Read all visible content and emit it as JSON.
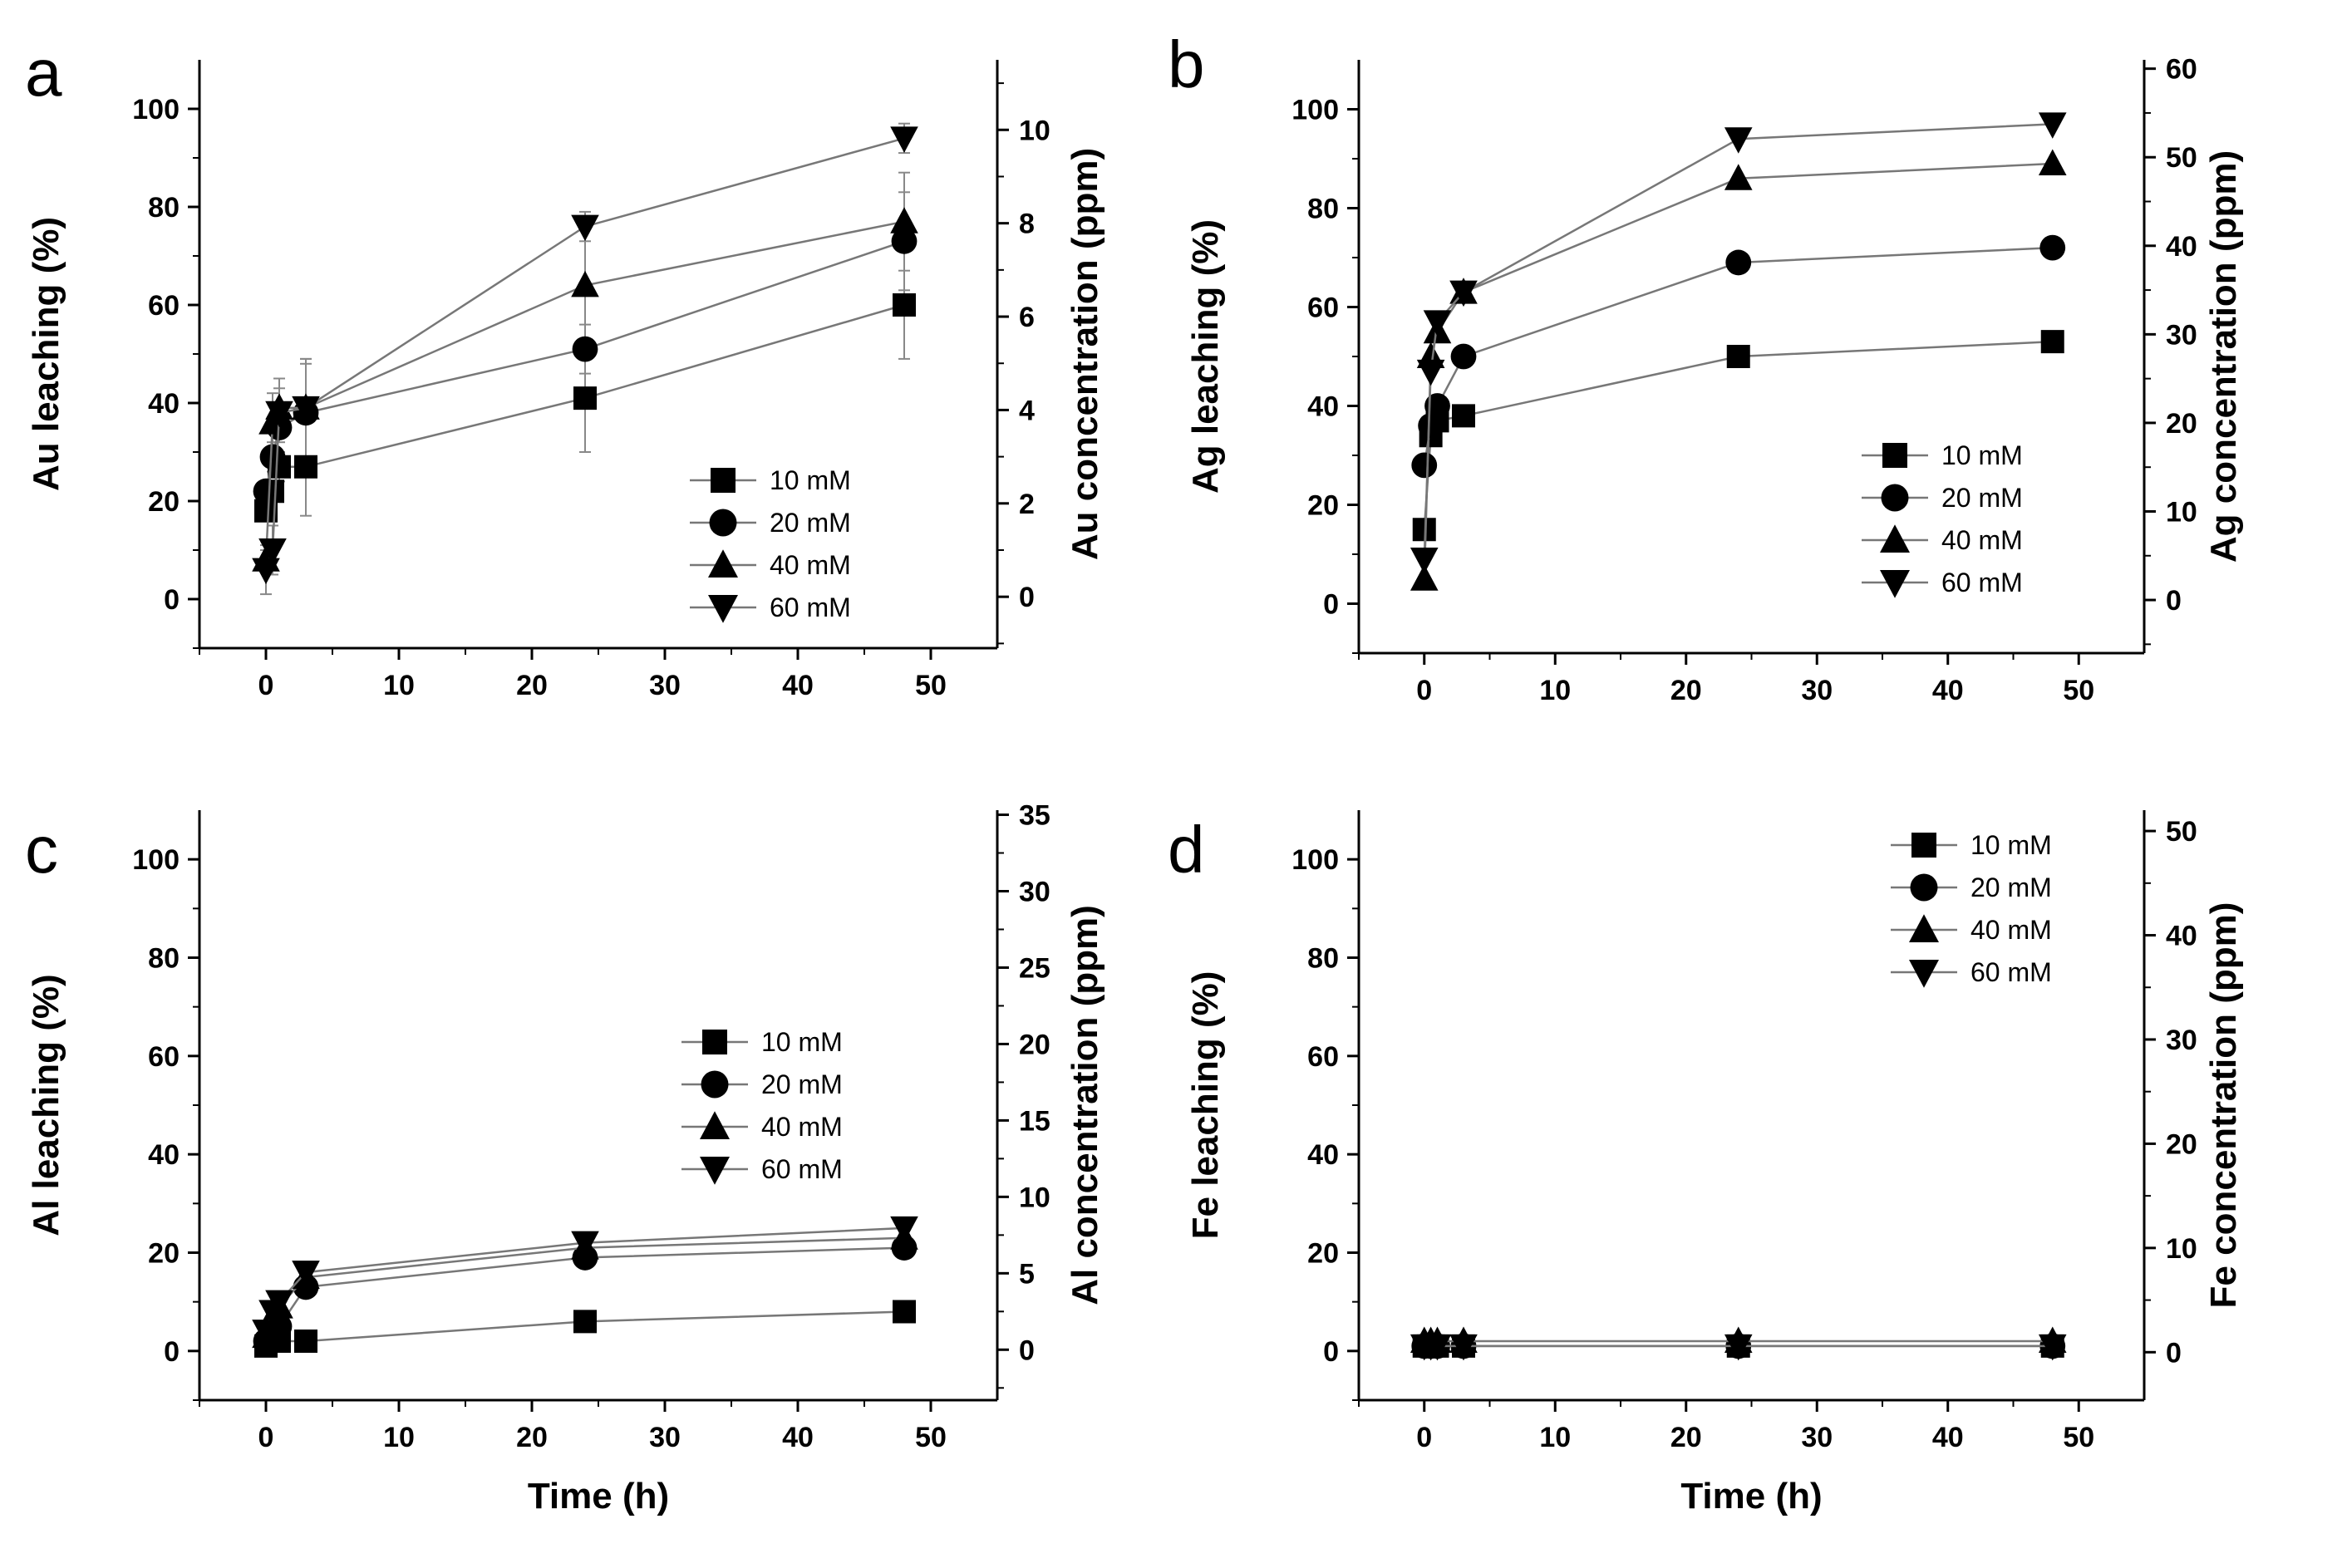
{
  "chart_data": [
    {
      "type": "line",
      "panel": "a",
      "xlabel": "",
      "ylabel": "Au leaching (%)",
      "y2label": "Au concentration (ppm)",
      "xlim": [
        -5,
        55
      ],
      "ylim": [
        -10,
        110
      ],
      "y2lim": [
        -1.1,
        11.5
      ],
      "xticks": [
        0,
        10,
        20,
        30,
        40,
        50
      ],
      "yticks": [
        0,
        20,
        40,
        60,
        80,
        100
      ],
      "y2ticks": [
        0,
        2,
        4,
        6,
        8,
        10
      ],
      "legend_position": "bottom-right",
      "x": [
        0,
        0.5,
        1,
        3,
        24,
        48
      ],
      "series": [
        {
          "name": "10 mM",
          "marker": "square",
          "values": [
            18,
            22,
            27,
            27,
            41,
            60
          ],
          "errors": [
            2,
            2,
            3,
            10,
            11,
            11
          ]
        },
        {
          "name": "20 mM",
          "marker": "circle",
          "values": [
            22,
            29,
            35,
            38,
            51,
            73
          ],
          "errors": [
            2,
            3,
            3,
            10,
            5,
            10
          ]
        },
        {
          "name": "40 mM",
          "marker": "triangle-up",
          "values": [
            8,
            36,
            39,
            39,
            64,
            77
          ],
          "errors": [
            2,
            6,
            6,
            10,
            12,
            10
          ]
        },
        {
          "name": "60 mM",
          "marker": "triangle-down",
          "values": [
            6,
            10,
            38,
            39,
            76,
            94
          ],
          "errors": [
            5,
            5,
            5,
            10,
            3,
            3
          ]
        }
      ]
    },
    {
      "type": "line",
      "panel": "b",
      "xlabel": "",
      "ylabel": "Ag leaching (%)",
      "y2label": "Ag concentration (ppm)",
      "xlim": [
        -5,
        55
      ],
      "ylim": [
        -10,
        110
      ],
      "y2lim": [
        -6,
        61
      ],
      "xticks": [
        0,
        10,
        20,
        30,
        40,
        50
      ],
      "yticks": [
        0,
        20,
        40,
        60,
        80,
        100
      ],
      "y2ticks": [
        0,
        10,
        20,
        30,
        40,
        50,
        60
      ],
      "legend_position": "bottom-right",
      "x": [
        0,
        0.5,
        1,
        3,
        24,
        48
      ],
      "series": [
        {
          "name": "10 mM",
          "marker": "square",
          "values": [
            15,
            34,
            37,
            38,
            50,
            53
          ],
          "errors": []
        },
        {
          "name": "20 mM",
          "marker": "circle",
          "values": [
            28,
            36,
            40,
            50,
            69,
            72
          ],
          "errors": []
        },
        {
          "name": "40 mM",
          "marker": "triangle-up",
          "values": [
            5,
            50,
            55,
            63,
            86,
            89
          ],
          "errors": []
        },
        {
          "name": "60 mM",
          "marker": "triangle-down",
          "values": [
            9,
            47,
            57,
            63,
            94,
            97
          ],
          "errors": []
        }
      ]
    },
    {
      "type": "line",
      "panel": "c",
      "xlabel": "Time (h)",
      "ylabel": "Al leaching (%)",
      "y2label": "Al concentration (ppm)",
      "xlim": [
        -5,
        55
      ],
      "ylim": [
        -10,
        110
      ],
      "y2lim": [
        -3.3,
        35.3
      ],
      "xticks": [
        0,
        10,
        20,
        30,
        40,
        50
      ],
      "yticks": [
        0,
        20,
        40,
        60,
        80,
        100
      ],
      "y2ticks": [
        0,
        5,
        10,
        15,
        20,
        25,
        30,
        35
      ],
      "legend_position": "center-right",
      "x": [
        0,
        0.5,
        1,
        3,
        24,
        48
      ],
      "series": [
        {
          "name": "10 mM",
          "marker": "square",
          "values": [
            1,
            2,
            2,
            2,
            6,
            8
          ],
          "errors": []
        },
        {
          "name": "20 mM",
          "marker": "circle",
          "values": [
            2,
            3,
            5,
            13,
            19,
            21
          ],
          "errors": []
        },
        {
          "name": "40 mM",
          "marker": "triangle-up",
          "values": [
            3,
            7,
            9,
            15,
            21,
            23
          ],
          "errors": []
        },
        {
          "name": "60 mM",
          "marker": "triangle-down",
          "values": [
            4,
            8,
            10,
            16,
            22,
            25
          ],
          "errors": []
        }
      ]
    },
    {
      "type": "line",
      "panel": "d",
      "xlabel": "Time (h)",
      "ylabel": "Fe leaching (%)",
      "y2label": "Fe concentration (ppm)",
      "xlim": [
        -5,
        55
      ],
      "ylim": [
        -10,
        110
      ],
      "y2lim": [
        -4.6,
        52
      ],
      "xticks": [
        0,
        10,
        20,
        30,
        40,
        50
      ],
      "yticks": [
        0,
        20,
        40,
        60,
        80,
        100
      ],
      "y2ticks": [
        0,
        10,
        20,
        30,
        40,
        50
      ],
      "legend_position": "top-right",
      "x": [
        0,
        0.5,
        1,
        3,
        24,
        48
      ],
      "series": [
        {
          "name": "10 mM",
          "marker": "square",
          "values": [
            1,
            1,
            1,
            1,
            1,
            1
          ],
          "errors": []
        },
        {
          "name": "20 mM",
          "marker": "circle",
          "values": [
            1,
            1,
            1,
            1,
            1,
            1
          ],
          "errors": []
        },
        {
          "name": "40 mM",
          "marker": "triangle-up",
          "values": [
            2,
            2,
            2,
            2,
            2,
            2
          ],
          "errors": []
        },
        {
          "name": "60 mM",
          "marker": "triangle-down",
          "values": [
            1,
            1,
            1,
            1,
            1,
            1
          ],
          "errors": []
        }
      ]
    }
  ]
}
